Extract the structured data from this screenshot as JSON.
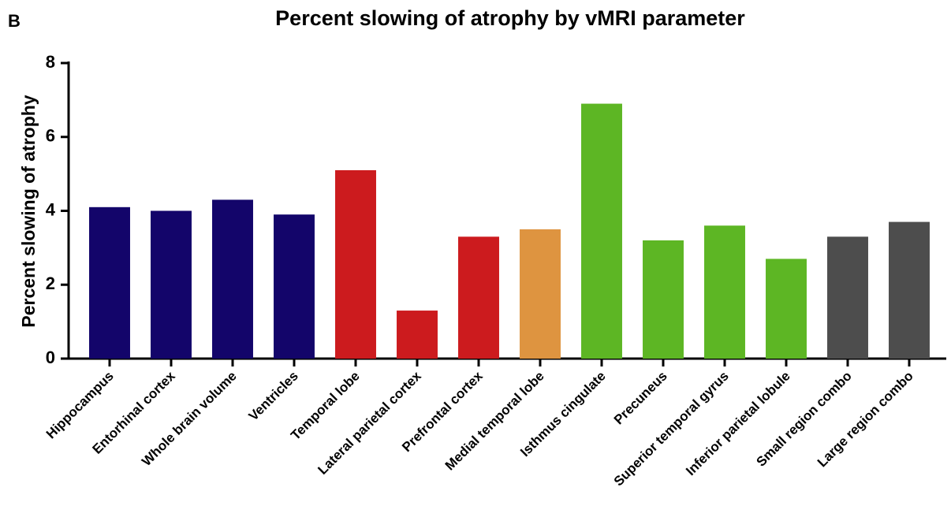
{
  "panel_label": "B",
  "chart_data": {
    "type": "bar",
    "title": "Percent slowing of atrophy by vMRI parameter",
    "y_label": "Percent slowing of atrophy",
    "categories": [
      "Hippocampus",
      "Entorhinal cortex",
      "Whole brain volume",
      "Ventricles",
      "Temporal lobe",
      "Lateral parietal cortex",
      "Prefrontal cortex",
      "Medial temporal lobe",
      "Isthmus cingulate",
      "Precuneus",
      "Superior temporal gyrus",
      "Inferior parietal lobule",
      "Small region combo",
      "Large region combo"
    ],
    "values": [
      4.1,
      4.0,
      4.3,
      3.9,
      5.1,
      1.3,
      3.3,
      3.5,
      6.9,
      3.2,
      3.6,
      2.7,
      3.3,
      3.7
    ],
    "colors": [
      "#13056a",
      "#13056a",
      "#13056a",
      "#13056a",
      "#cc1b1e",
      "#cc1b1e",
      "#cc1b1e",
      "#de9440",
      "#5db624",
      "#5db624",
      "#5db624",
      "#5db624",
      "#4d4d4d",
      "#4d4d4d"
    ],
    "ylim": [
      0,
      8
    ],
    "yticks": [
      0,
      2,
      4,
      6,
      8
    ],
    "grid": false
  }
}
